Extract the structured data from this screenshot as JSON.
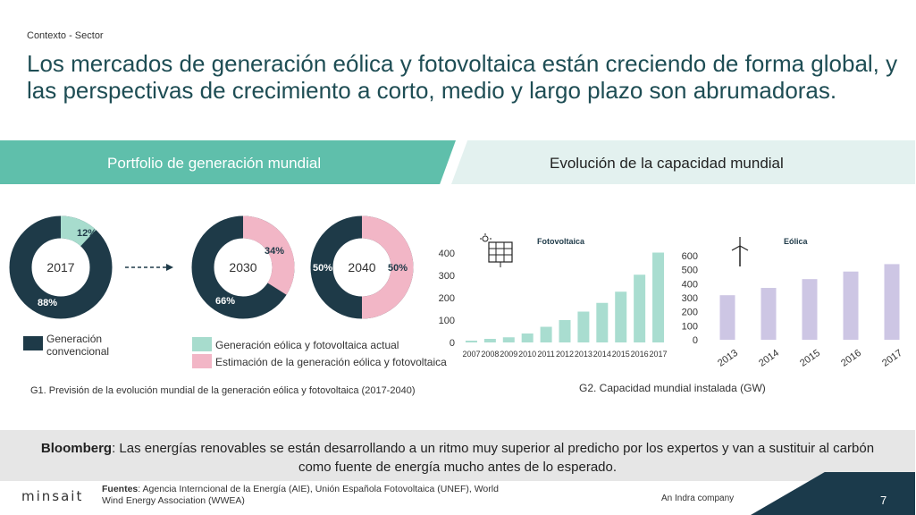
{
  "header": {
    "section": "Contexto - Sector",
    "title": "Los mercados de generación eólica y fotovoltaica están creciendo de forma global, y las perspectivas de crecimiento a corto, medio y largo plazo son abrumadoras."
  },
  "bands": {
    "left": "Portfolio de generación mundial",
    "right": "Evolución de la capacidad mundial"
  },
  "donuts": {
    "d2017": {
      "year": "2017",
      "conventional_pct": "88%",
      "renewable_pct": "12%",
      "conventional": 88,
      "renewable": 12
    },
    "d2030": {
      "year": "2030",
      "conventional_pct": "66%",
      "estimate_pct": "34%",
      "conventional": 66,
      "estimate": 34
    },
    "d2040": {
      "year": "2040",
      "conventional_pct": "50%",
      "estimate_pct": "50%",
      "conventional": 50,
      "estimate": 50
    }
  },
  "legend": {
    "conventional": "Generación convencional",
    "actual": "Generación eólica y fotovoltaica actual",
    "estimate": "Estimación de la generación eólica y fotovoltaica"
  },
  "colors": {
    "conventional": "#1e3a48",
    "renewable_actual": "#a7dccd",
    "renewable_estimate": "#f2b6c6",
    "solar_bar": "#a9ddd0",
    "wind_bar": "#cdc6e4",
    "accent": "#5fbfab"
  },
  "captions": {
    "g1": "G1. Previsión de la evolución mundial de la generación eólica y fotovoltaica (2017-2040)",
    "g2": "G2. Capacidad mundial instalada (GW)"
  },
  "quote": {
    "source": "Bloomberg",
    "text": ": Las energías renovables se están desarrollando a un ritmo muy superior al predicho por los expertos y van a sustituir al carbón como fuente de energía mucho antes de lo esperado."
  },
  "footer": {
    "logo": "minsait",
    "sources_label": "Fuentes",
    "sources_text": ": Agencia Interncional de la Energía (AIE), Unión Española Fotovoltaica (UNEF), World Wind Energy Association (WWEA)",
    "company": "An Indra company",
    "page": "7"
  },
  "chart_data": [
    {
      "type": "bar",
      "title": "Fotovoltaica",
      "categories": [
        "2007",
        "2008",
        "2009",
        "2010",
        "2011",
        "2012",
        "2013",
        "2014",
        "2015",
        "2016",
        "2017"
      ],
      "values": [
        8,
        16,
        23,
        40,
        70,
        100,
        138,
        177,
        227,
        303,
        402
      ],
      "ylim": [
        0,
        400
      ],
      "yticks": [
        0,
        100,
        200,
        300,
        400
      ],
      "grid": false
    },
    {
      "type": "bar",
      "title": "Eólica",
      "categories": [
        "2013",
        "2014",
        "2015",
        "2016",
        "2017"
      ],
      "values": [
        318,
        370,
        433,
        487,
        540
      ],
      "ylim": [
        0,
        600
      ],
      "yticks": [
        0,
        100,
        200,
        300,
        400,
        500,
        600
      ],
      "grid": false
    }
  ]
}
